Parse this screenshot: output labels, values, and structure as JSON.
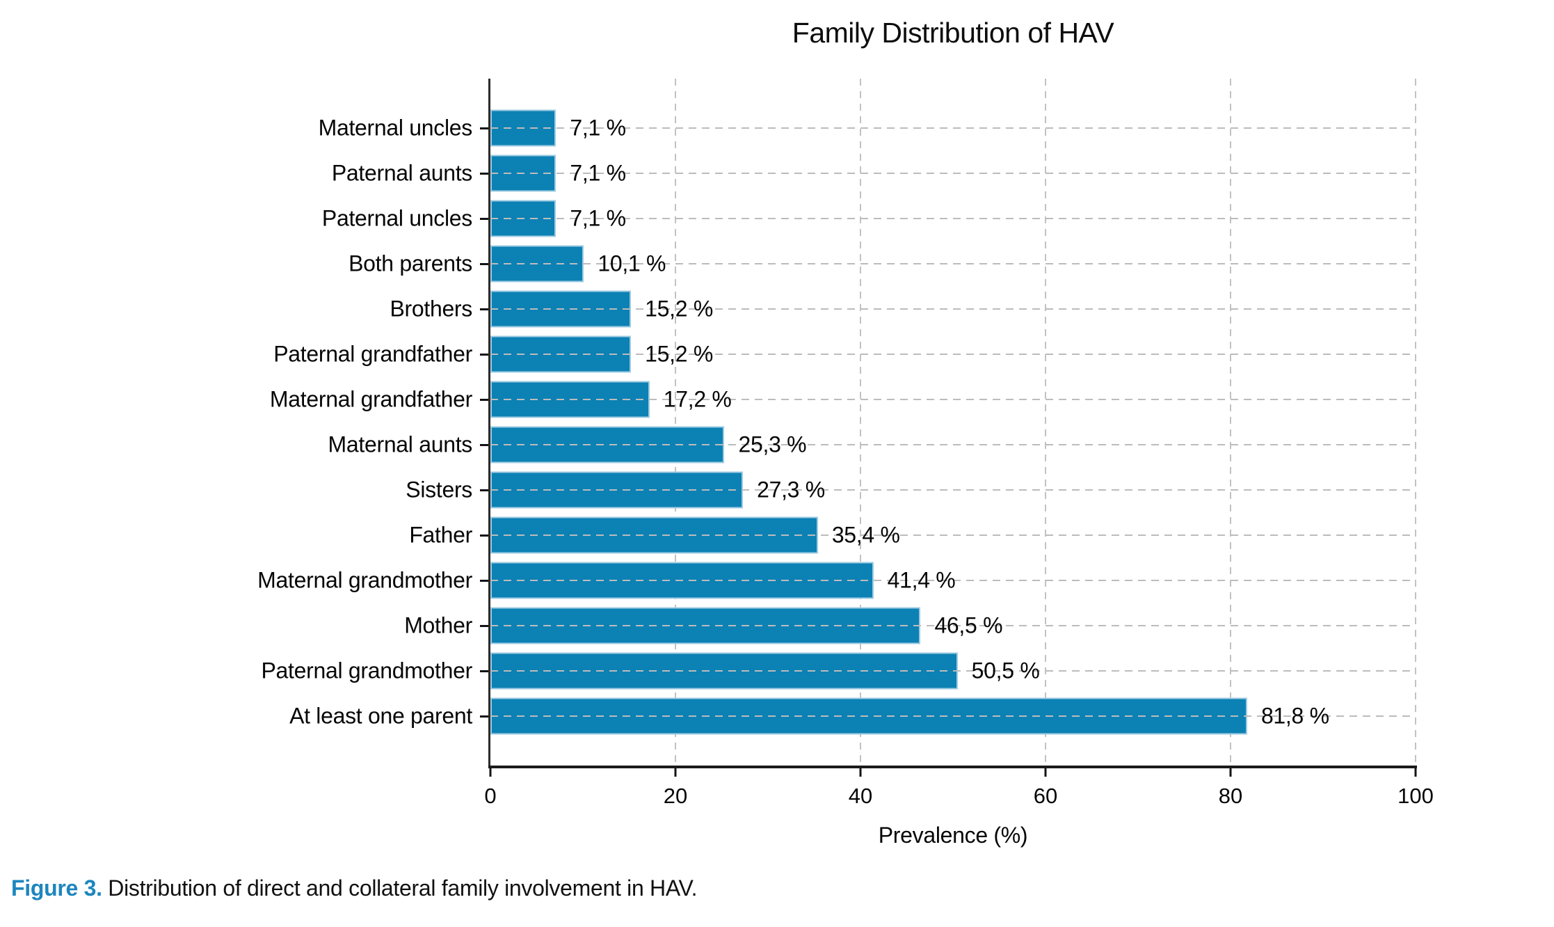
{
  "chart_data": {
    "type": "bar",
    "orientation": "horizontal",
    "title": "Family Distribution of HAV",
    "xlabel": "Prevalence (%)",
    "xlim": [
      0,
      100
    ],
    "xticks": [
      0,
      20,
      40,
      60,
      80,
      100
    ],
    "grid": "dashed-both-axes",
    "legend": "none",
    "bar_color": "#0c81b4",
    "bar_edge_color": "#9fcbe2",
    "categories": [
      "Maternal uncles",
      "Paternal aunts",
      "Paternal uncles",
      "Both parents",
      "Brothers",
      "Paternal grandfather",
      "Maternal grandfather",
      "Maternal aunts",
      "Sisters",
      "Father",
      "Maternal grandmother",
      "Mother",
      "Paternal grandmother",
      "At least one parent"
    ],
    "values": [
      7.1,
      7.1,
      7.1,
      10.1,
      15.2,
      15.2,
      17.2,
      25.3,
      27.3,
      35.4,
      41.4,
      46.5,
      50.5,
      81.8
    ],
    "value_labels": [
      "7,1 %",
      "7,1 %",
      "7,1 %",
      "10,1 %",
      "15,2 %",
      "15,2 %",
      "17,2 %",
      "25,3 %",
      "27,3 %",
      "35,4 %",
      "41,4 %",
      "46,5 %",
      "50,5 %",
      "81,8 %"
    ]
  },
  "caption": {
    "prefix": "Figure 3.",
    "text": " Distribution of direct and collateral family involvement in HAV.",
    "prefix_color": "#1d86be"
  }
}
